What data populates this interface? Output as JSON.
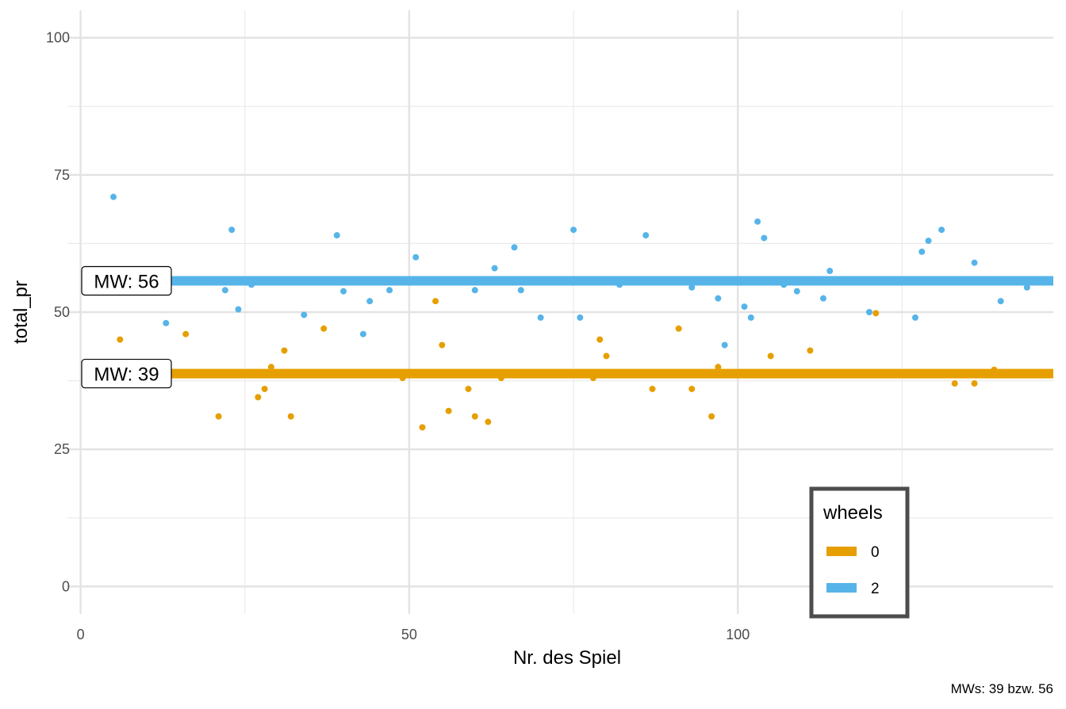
{
  "chart_data": {
    "type": "scatter",
    "xlabel": "Nr. des Spiel",
    "ylabel": "total_pr",
    "caption": "MWs: 39 bzw. 56",
    "xlim": [
      -2,
      148
    ],
    "ylim": [
      -5,
      105
    ],
    "x_ticks": [
      0,
      50,
      100
    ],
    "y_ticks": [
      0,
      25,
      50,
      75,
      100
    ],
    "grid": true,
    "legend": {
      "title": "wheels",
      "position": "bottom-right",
      "entries": [
        {
          "label": "0",
          "color": "#E69F00"
        },
        {
          "label": "2",
          "color": "#56B4E9"
        }
      ]
    },
    "mean_lines": [
      {
        "group": "0",
        "value": 38.8,
        "label": "MW: 39",
        "color": "#E69F00"
      },
      {
        "group": "2",
        "value": 55.7,
        "label": "MW: 56",
        "color": "#56B4E9"
      }
    ],
    "series": [
      {
        "name": "0",
        "color": "#E69F00",
        "points": [
          [
            6,
            45
          ],
          [
            16,
            46
          ],
          [
            21,
            31
          ],
          [
            27,
            34.5
          ],
          [
            28,
            36
          ],
          [
            29,
            40
          ],
          [
            31,
            43
          ],
          [
            32,
            31
          ],
          [
            37,
            47
          ],
          [
            49,
            38
          ],
          [
            52,
            29
          ],
          [
            54,
            52
          ],
          [
            55,
            44
          ],
          [
            56,
            32
          ],
          [
            59,
            36
          ],
          [
            60,
            31
          ],
          [
            62,
            30
          ],
          [
            64,
            38
          ],
          [
            78,
            38
          ],
          [
            79,
            45
          ],
          [
            80,
            42
          ],
          [
            87,
            36
          ],
          [
            91,
            47
          ],
          [
            93,
            36
          ],
          [
            96,
            31
          ],
          [
            97,
            40
          ],
          [
            105,
            42
          ],
          [
            111,
            43
          ],
          [
            121,
            49.8
          ],
          [
            133,
            37
          ],
          [
            136,
            37
          ],
          [
            139,
            39.5
          ]
        ]
      },
      {
        "name": "2",
        "color": "#56B4E9",
        "points": [
          [
            5,
            71
          ],
          [
            13,
            48
          ],
          [
            22,
            54
          ],
          [
            23,
            65
          ],
          [
            24,
            50.5
          ],
          [
            26,
            55
          ],
          [
            34,
            49.5
          ],
          [
            39,
            64
          ],
          [
            40,
            53.8
          ],
          [
            43,
            46
          ],
          [
            44,
            52
          ],
          [
            47,
            54
          ],
          [
            51,
            60
          ],
          [
            60,
            54
          ],
          [
            63,
            58
          ],
          [
            66,
            61.8
          ],
          [
            67,
            54
          ],
          [
            70,
            49
          ],
          [
            75,
            65
          ],
          [
            76,
            49
          ],
          [
            82,
            55
          ],
          [
            86,
            64
          ],
          [
            93,
            54.5
          ],
          [
            97,
            52.5
          ],
          [
            98,
            44
          ],
          [
            101,
            51
          ],
          [
            102,
            49
          ],
          [
            103,
            66.5
          ],
          [
            104,
            63.5
          ],
          [
            107,
            55
          ],
          [
            109,
            53.8
          ],
          [
            113,
            52.5
          ],
          [
            114,
            57.5
          ],
          [
            120,
            50
          ],
          [
            127,
            49
          ],
          [
            128,
            61
          ],
          [
            129,
            63
          ],
          [
            131,
            65
          ],
          [
            136,
            59
          ],
          [
            140,
            52
          ],
          [
            144,
            54.5
          ]
        ]
      }
    ]
  }
}
